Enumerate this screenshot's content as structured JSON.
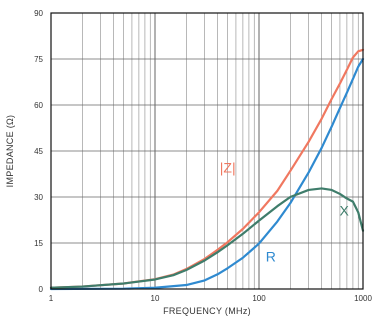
{
  "chart_data": {
    "type": "line",
    "title": "",
    "xlabel": "FREQUENCY (MHz)",
    "ylabel": "IMPEDANCE (Ω)",
    "xscale": "log",
    "xlim": [
      1,
      1000
    ],
    "ylim": [
      0,
      90
    ],
    "grid": true,
    "legend": "inline labels",
    "x_ticks": [
      {
        "value": 1,
        "label": "1"
      },
      {
        "value": 10,
        "label": "10"
      },
      {
        "value": 100,
        "label": "100"
      },
      {
        "value": 1000,
        "label": "1000"
      }
    ],
    "y_ticks": [
      {
        "value": 0,
        "label": "0"
      },
      {
        "value": 15,
        "label": "15"
      },
      {
        "value": 30,
        "label": "30"
      },
      {
        "value": 45,
        "label": "45"
      },
      {
        "value": 60,
        "label": "60"
      },
      {
        "value": 75,
        "label": "75"
      },
      {
        "value": 90,
        "label": "90"
      }
    ],
    "series": [
      {
        "name": "|Z|",
        "color": "#f07860",
        "label_at": {
          "x": 50,
          "y": 38
        },
        "points": [
          [
            1,
            0.4
          ],
          [
            2,
            0.8
          ],
          [
            5,
            1.8
          ],
          [
            10,
            3.2
          ],
          [
            15,
            4.7
          ],
          [
            20,
            6.5
          ],
          [
            30,
            9.8
          ],
          [
            40,
            12.8
          ],
          [
            50,
            15.3
          ],
          [
            70,
            19.6
          ],
          [
            100,
            25
          ],
          [
            150,
            32
          ],
          [
            200,
            38.5
          ],
          [
            300,
            48
          ],
          [
            400,
            55.5
          ],
          [
            500,
            62
          ],
          [
            600,
            67
          ],
          [
            700,
            71.5
          ],
          [
            800,
            75.5
          ],
          [
            900,
            77.5
          ],
          [
            1000,
            78
          ]
        ]
      },
      {
        "name": "R",
        "color": "#2f8ad0",
        "label_at": {
          "x": 130,
          "y": 9
        },
        "points": [
          [
            1,
            0
          ],
          [
            5,
            0.1
          ],
          [
            10,
            0.4
          ],
          [
            20,
            1.3
          ],
          [
            30,
            2.8
          ],
          [
            40,
            4.8
          ],
          [
            50,
            6.8
          ],
          [
            70,
            10.2
          ],
          [
            100,
            14.8
          ],
          [
            150,
            22
          ],
          [
            200,
            28
          ],
          [
            300,
            38
          ],
          [
            400,
            46
          ],
          [
            500,
            53
          ],
          [
            600,
            59
          ],
          [
            700,
            64
          ],
          [
            800,
            68.5
          ],
          [
            900,
            72.5
          ],
          [
            1000,
            75
          ]
        ]
      },
      {
        "name": "X",
        "color": "#3f7d6b",
        "label_at": {
          "x": 660,
          "y": 24
        },
        "points": [
          [
            1,
            0.4
          ],
          [
            2,
            0.8
          ],
          [
            5,
            1.8
          ],
          [
            10,
            3.1
          ],
          [
            15,
            4.5
          ],
          [
            20,
            6.2
          ],
          [
            30,
            9.3
          ],
          [
            40,
            12
          ],
          [
            50,
            14.3
          ],
          [
            70,
            18
          ],
          [
            100,
            22.3
          ],
          [
            150,
            27
          ],
          [
            200,
            30
          ],
          [
            300,
            32.3
          ],
          [
            400,
            32.8
          ],
          [
            500,
            32.3
          ],
          [
            600,
            31
          ],
          [
            700,
            29.5
          ],
          [
            800,
            28.5
          ],
          [
            900,
            25
          ],
          [
            1000,
            19
          ]
        ]
      }
    ]
  }
}
